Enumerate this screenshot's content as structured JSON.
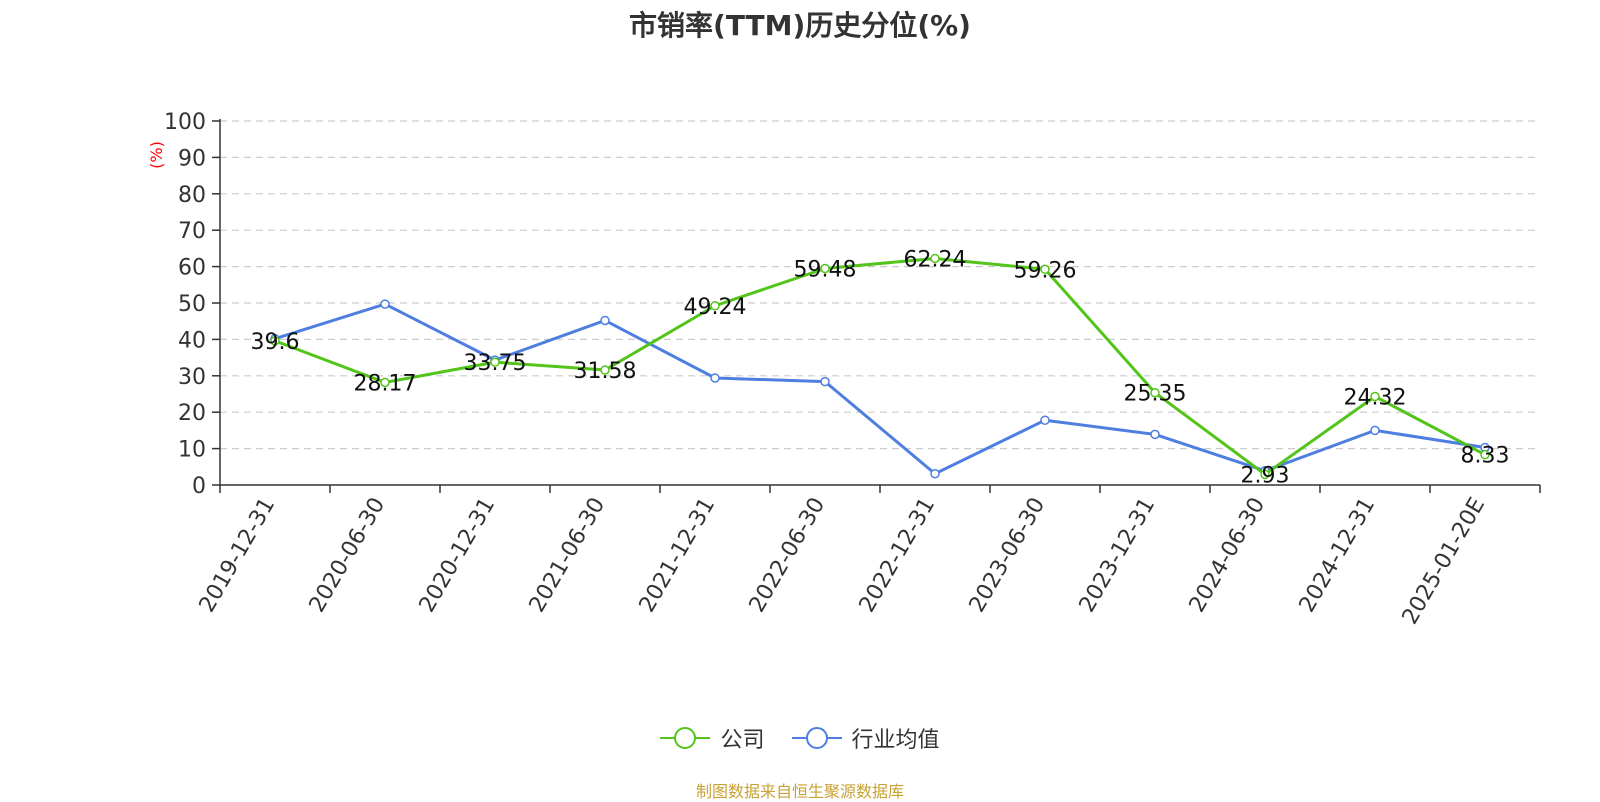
{
  "title": "市销率(TTM)历史分位(%)",
  "source": "制图数据来自恒生聚源数据库",
  "colors": {
    "company": "#52c41a",
    "industry": "#4e7fe0",
    "axis": "#333333",
    "grid": "#cccccc",
    "unit": "#ff0000"
  },
  "chart_data": {
    "type": "line",
    "title": "市销率(TTM)历史分位(%)",
    "ylabel": "(%)",
    "xlabel": "",
    "ylim": [
      0,
      100
    ],
    "yticks": [
      0,
      10,
      20,
      30,
      40,
      50,
      60,
      70,
      80,
      90,
      100
    ],
    "grid": true,
    "legend_position": "bottom-center",
    "categories": [
      "2019-12-31",
      "2020-06-30",
      "2020-12-31",
      "2021-06-30",
      "2021-12-31",
      "2022-06-30",
      "2022-12-31",
      "2023-06-30",
      "2023-12-31",
      "2024-06-30",
      "2024-12-31",
      "2025-01-20E"
    ],
    "series": [
      {
        "name": "公司",
        "color": "#52c41a",
        "show_labels": true,
        "values": [
          39.6,
          28.17,
          33.75,
          31.58,
          49.24,
          59.48,
          62.24,
          59.26,
          25.35,
          2.93,
          24.32,
          8.33
        ]
      },
      {
        "name": "行业均值",
        "color": "#4e7fe0",
        "show_labels": false,
        "values": [
          40.2,
          49.7,
          34.3,
          45.2,
          29.4,
          28.4,
          3.1,
          17.8,
          13.9,
          3.9,
          15.0,
          10.3
        ]
      }
    ]
  }
}
